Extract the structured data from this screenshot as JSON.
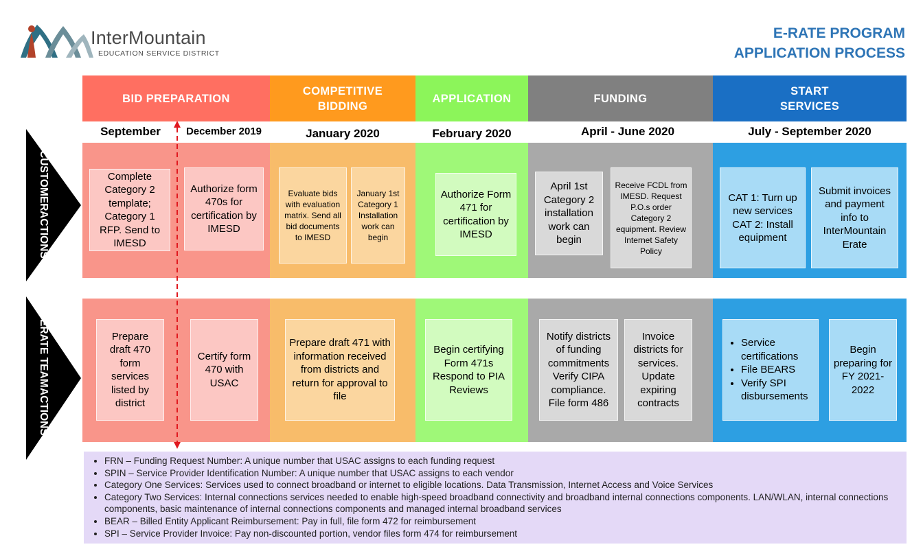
{
  "brand": {
    "name": "InterMountain",
    "subtitle": "EDUCATION SERVICE DISTRICT"
  },
  "title": {
    "line1": "E-RATE PROGRAM",
    "line2": "APPLICATION PROCESS"
  },
  "row_labels": {
    "customer": [
      "CUSTOMER",
      "ACTIONS"
    ],
    "erate": [
      "ERATE TEAM",
      "ACTIONS"
    ]
  },
  "phases": [
    {
      "name": "BID PREPARATION",
      "dates": [
        "September",
        "December 2019"
      ],
      "customer": [
        "Complete Category 2 template; Category 1 RFP. Send to IMESD",
        "Authorize form 470s for certification by IMESD"
      ],
      "erate": [
        "Prepare draft 470 form services listed by district",
        "Certify form 470 with USAC"
      ]
    },
    {
      "name": [
        "COMPETITIVE",
        "BIDDING"
      ],
      "dates": [
        "January 2020"
      ],
      "customer": [
        "Evaluate bids with evaluation matrix. Send all bid documents to IMESD",
        "January 1st Category 1 Installation work can begin"
      ],
      "erate": [
        "Prepare draft 471 with information received from districts and return for approval to file"
      ]
    },
    {
      "name": "APPLICATION",
      "dates": [
        "February 2020"
      ],
      "customer": [
        "Authorize Form 471 for certification by IMESD"
      ],
      "erate": [
        "Begin certifying Form 471s Respond to PIA Reviews"
      ]
    },
    {
      "name": "FUNDING",
      "dates": [
        "April - June 2020"
      ],
      "customer": [
        "April 1st Category 2 installation work can begin",
        "Receive FCDL from IMESD. Request P.O.s order Category 2 equipment. Review Internet Safety Policy"
      ],
      "erate": [
        "Notify districts of funding commitments Verify CIPA compliance. File form 486",
        "Invoice districts for services. Update expiring contracts"
      ]
    },
    {
      "name": [
        "START",
        "SERVICES"
      ],
      "dates": [
        "July - September 2020"
      ],
      "customer": [
        "CAT 1: Turn up new services CAT 2: Install equipment",
        "Submit invoices and payment info to InterMountain Erate"
      ],
      "erate_list": [
        "Service certifications",
        "File BEARS",
        "Verify SPI disbursements"
      ],
      "erate": [
        "Begin preparing for FY 2021-2022"
      ]
    }
  ],
  "glossary": [
    "FRN – Funding Request Number: A unique number that USAC assigns to each funding request",
    "SPIN – Service Provider Identification Number: A unique number that USAC assigns to each vendor",
    "Category One Services: Services used to connect broadband or internet to eligible locations. Data Transmission, Internet Access and Voice Services",
    "Category Two Services: Internal connections services needed to enable high-speed broadband connectivity and broadband internal connections components. LAN/WLAN, internal connections components, basic maintenance of internal connections components and managed internal broadband services",
    "BEAR – Billed Entity Applicant Reimbursement: Pay in full, file form 472 for reimbursement",
    "SPI – Service Provider Invoice: Pay non-discounted portion, vendor files form 474 for reimbursement"
  ],
  "colors": {
    "bid_head": "#ff6f61",
    "bid_band": "#f9958a",
    "bid_box": "#fcc7c3",
    "comp_head": "#ff9a1e",
    "comp_band": "#f8bc6a",
    "comp_box": "#fbd69f",
    "app_head": "#8cf55a",
    "app_band": "#9ff878",
    "app_box": "#d2fbbf",
    "fund_head": "#808080",
    "fund_band": "#a9a9a9",
    "fund_box": "#d9d9d9",
    "start_head": "#1a6fc4",
    "start_band": "#2d9fe2",
    "start_box": "#a8dbf6",
    "glossary_bg": "#e4d9f7",
    "title": "#2e75b6",
    "divider": "#e0191f"
  }
}
